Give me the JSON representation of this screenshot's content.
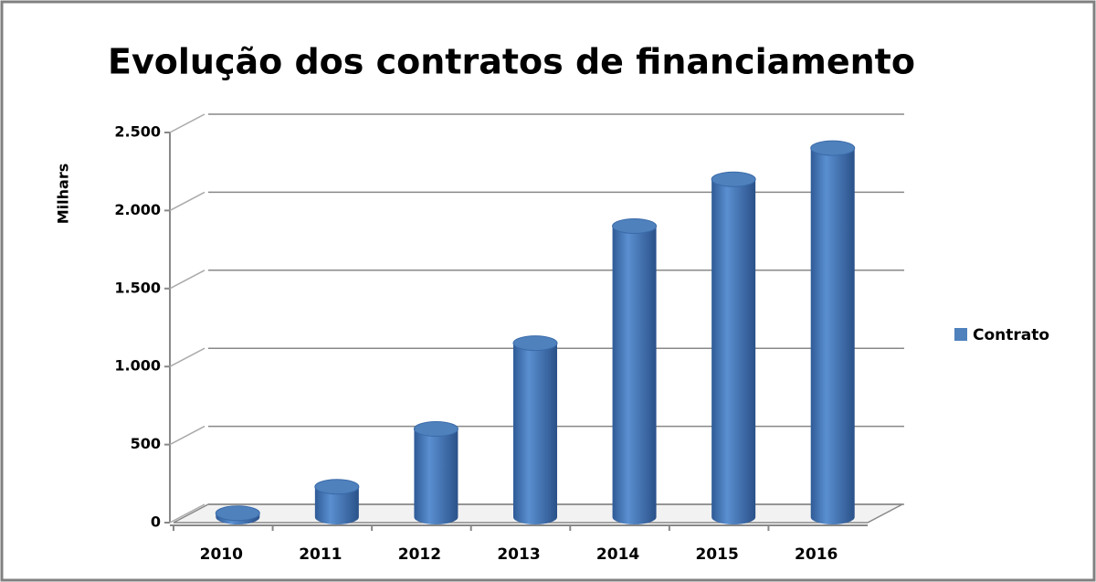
{
  "chart_data": {
    "type": "bar",
    "title": "Evolução dos contratos de  financiamento",
    "y_label": "Milhars",
    "categories": [
      "2010",
      "2011",
      "2012",
      "2013",
      "2014",
      "2015",
      "2016"
    ],
    "series": [
      {
        "name": "Contrato",
        "color": "#4f81bd",
        "values": [
          60,
          230,
          600,
          1150,
          1900,
          2200,
          2400
        ]
      }
    ],
    "ylim": [
      0,
      2500
    ],
    "yticks": [
      0,
      500,
      {
        "value": 1000,
        "label": "1.000"
      },
      {
        "value": 1500,
        "label": "1.500"
      },
      {
        "value": 2000,
        "label": "2.000"
      },
      {
        "value": 2500,
        "label": "2.500"
      }
    ],
    "grid": true,
    "legend": "right"
  }
}
